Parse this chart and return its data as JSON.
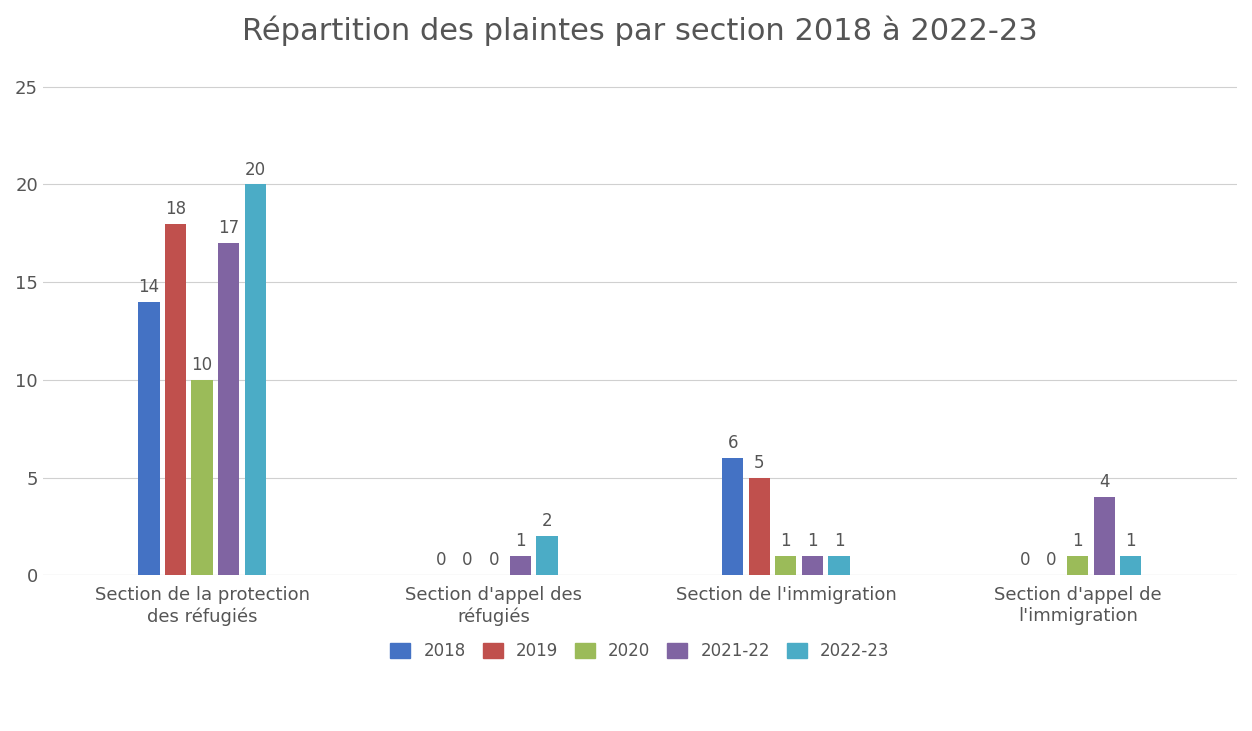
{
  "title": "Répartition des plaintes par section 2018 à 2022-23",
  "categories": [
    "Section de la protection\ndes réfugiés",
    "Section d'appel des\nréfugiés",
    "Section de l'immigration",
    "Section d'appel de\nl'immigration"
  ],
  "years": [
    "2018",
    "2019",
    "2020",
    "2021-22",
    "2022-23"
  ],
  "colors": [
    "#4472C4",
    "#C0504D",
    "#9BBB59",
    "#8064A2",
    "#4BACC6"
  ],
  "values": [
    [
      14,
      18,
      10,
      17,
      20
    ],
    [
      0,
      0,
      0,
      1,
      2
    ],
    [
      6,
      5,
      1,
      1,
      1
    ],
    [
      0,
      0,
      1,
      4,
      1
    ]
  ],
  "ylim": [
    0,
    26
  ],
  "yticks": [
    0,
    5,
    10,
    15,
    20,
    25
  ],
  "title_fontsize": 22,
  "tick_fontsize": 13,
  "label_fontsize": 13,
  "legend_fontsize": 12,
  "bar_label_fontsize": 12,
  "background_color": "#ffffff",
  "grid_color": "#d0d0d0"
}
